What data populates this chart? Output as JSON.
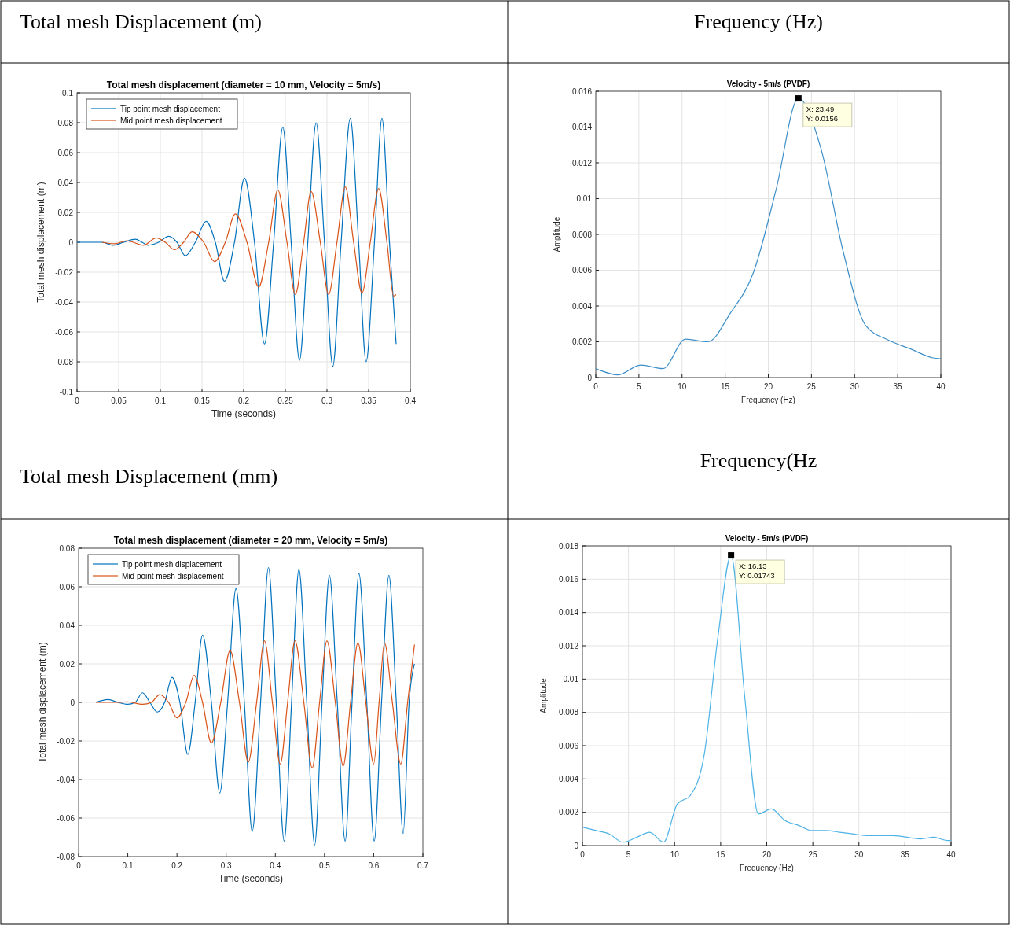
{
  "chart_data": [
    {
      "type": "line",
      "title": "Total mesh displacement (diameter = 10 mm, Velocity = 5m/s)",
      "xlabel": "Time (seconds)",
      "ylabel": "Total mesh displacement (m)",
      "xlim": [
        0,
        0.4
      ],
      "ylim": [
        -0.1,
        0.1
      ],
      "xticks": [
        0,
        0.05,
        0.1,
        0.15,
        0.2,
        0.25,
        0.3,
        0.35,
        0.4
      ],
      "yticks": [
        -0.1,
        -0.08,
        -0.06,
        -0.04,
        -0.02,
        0,
        0.02,
        0.04,
        0.06,
        0.08,
        0.1
      ],
      "grid": true,
      "legend": "top left",
      "annotations": [
        "Total mesh Displacement (m)",
        "Total mesh Displacement (mm)"
      ],
      "series": [
        {
          "name": "Tip point mesh displacement",
          "color": "#0072bd",
          "x": [
            0,
            0.03,
            0.043,
            0.056,
            0.07,
            0.078,
            0.085,
            0.098,
            0.11,
            0.12,
            0.13,
            0.142,
            0.155,
            0.166,
            0.177,
            0.189,
            0.201,
            0.213,
            0.225,
            0.236,
            0.247,
            0.257,
            0.267,
            0.277,
            0.287,
            0.297,
            0.307,
            0.317,
            0.328,
            0.338,
            0.347,
            0.357,
            0.366,
            0.375,
            0.383
          ],
          "values": [
            0,
            0,
            -0.002,
            0,
            0.002,
            0,
            -0.002,
            0,
            0.004,
            0,
            -0.009,
            0,
            0.014,
            0,
            -0.026,
            0,
            0.043,
            0,
            -0.068,
            0,
            0.077,
            0,
            -0.079,
            0,
            0.08,
            0,
            -0.083,
            0,
            0.083,
            0,
            -0.08,
            0,
            0.083,
            0,
            -0.068
          ]
        },
        {
          "name": "Mid point mesh displacement",
          "color": "#d95319",
          "x": [
            0.03,
            0.045,
            0.06,
            0.08,
            0.095,
            0.106,
            0.117,
            0.128,
            0.138,
            0.152,
            0.165,
            0.178,
            0.19,
            0.204,
            0.218,
            0.23,
            0.241,
            0.252,
            0.262,
            0.272,
            0.281,
            0.292,
            0.302,
            0.312,
            0.322,
            0.332,
            0.342,
            0.352,
            0.362,
            0.372,
            0.38,
            0.383
          ],
          "values": [
            0,
            -0.001,
            0.001,
            -0.002,
            0.003,
            0,
            -0.005,
            0,
            0.007,
            0,
            -0.013,
            0,
            0.019,
            0,
            -0.03,
            0,
            0.035,
            0,
            -0.035,
            0,
            0.034,
            0,
            -0.035,
            0,
            0.037,
            0,
            -0.034,
            0,
            0.036,
            0,
            -0.036,
            -0.035
          ]
        }
      ]
    },
    {
      "type": "line",
      "title": "Velocity - 5m/s (PVDF)",
      "xlabel": "Frequency (Hz)",
      "ylabel": "Amplitude",
      "xlim": [
        0,
        40
      ],
      "ylim": [
        0,
        0.016
      ],
      "xticks": [
        0,
        5,
        10,
        15,
        20,
        25,
        30,
        35,
        40
      ],
      "yticks": [
        0,
        0.002,
        0.004,
        0.006,
        0.008,
        0.01,
        0.012,
        0.014,
        0.016
      ],
      "grid": true,
      "annotations": [
        "Frequency (Hz)",
        "Frequency(Hz",
        {
          "text": "X: 23.49\nY: 0.0156",
          "x": 23.49,
          "y": 0.0156
        }
      ],
      "series": [
        {
          "color": "#3d8fc9",
          "x": [
            0,
            2.6,
            5.2,
            7.8,
            10.4,
            13,
            15.6,
            18.3,
            20.9,
            23.49,
            26.1,
            28.7,
            31.3,
            33.9,
            36.5,
            39.1,
            40
          ],
          "values": [
            0.0005,
            0.00015,
            0.0007,
            0.0005,
            0.00215,
            0.002,
            0.0036,
            0.0059,
            0.0105,
            0.0156,
            0.0128,
            0.007,
            0.0029,
            0.0021,
            0.0016,
            0.0011,
            0.00105
          ]
        }
      ]
    },
    {
      "type": "line",
      "title": "Total mesh displacement (diameter = 20 mm, Velocity = 5m/s)",
      "xlabel": "Time (seconds)",
      "ylabel": "Total mesh displacement (m)",
      "xlim": [
        0,
        0.7
      ],
      "ylim": [
        -0.08,
        0.08
      ],
      "xticks": [
        0,
        0.1,
        0.2,
        0.3,
        0.4,
        0.5,
        0.6,
        0.7
      ],
      "yticks": [
        -0.08,
        -0.06,
        -0.04,
        -0.02,
        0,
        0.02,
        0.04,
        0.06,
        0.08
      ],
      "grid": "y",
      "legend": "top left",
      "series": [
        {
          "name": "Tip point mesh displacement",
          "color": "#0072bd",
          "x": [
            0.035,
            0.06,
            0.08,
            0.1,
            0.115,
            0.13,
            0.145,
            0.16,
            0.175,
            0.19,
            0.206,
            0.222,
            0.237,
            0.252,
            0.27,
            0.287,
            0.303,
            0.32,
            0.337,
            0.353,
            0.37,
            0.386,
            0.402,
            0.418,
            0.433,
            0.448,
            0.464,
            0.48,
            0.495,
            0.51,
            0.526,
            0.542,
            0.556,
            0.57,
            0.586,
            0.601,
            0.616,
            0.631,
            0.646,
            0.66,
            0.672,
            0.683
          ],
          "values": [
            0,
            0.0015,
            0,
            -0.001,
            0,
            0.005,
            0,
            -0.005,
            0,
            0.013,
            0,
            -0.027,
            0,
            0.035,
            0,
            -0.047,
            0,
            0.059,
            0,
            -0.067,
            0,
            0.07,
            0,
            -0.072,
            0,
            0.069,
            0,
            -0.074,
            0,
            0.066,
            0,
            -0.072,
            0,
            0.067,
            0,
            -0.072,
            0,
            0.066,
            0,
            -0.068,
            0,
            0.02
          ]
        },
        {
          "name": "Mid point mesh displacement",
          "color": "#d95319",
          "x": [
            0.035,
            0.08,
            0.1,
            0.13,
            0.148,
            0.165,
            0.183,
            0.2,
            0.218,
            0.235,
            0.252,
            0.27,
            0.289,
            0.308,
            0.327,
            0.345,
            0.362,
            0.378,
            0.394,
            0.41,
            0.425,
            0.44,
            0.458,
            0.475,
            0.49,
            0.505,
            0.522,
            0.538,
            0.553,
            0.568,
            0.584,
            0.6,
            0.611,
            0.622,
            0.638,
            0.655,
            0.669,
            0.683
          ],
          "values": [
            0,
            0,
            0.0003,
            -0.001,
            0,
            0.004,
            0,
            -0.008,
            0,
            0.014,
            0,
            -0.021,
            0,
            0.027,
            0,
            -0.031,
            0,
            0.032,
            0,
            -0.032,
            0,
            0.032,
            0,
            -0.034,
            0,
            0.032,
            0,
            -0.033,
            0,
            0.031,
            0,
            -0.032,
            0,
            0.031,
            0,
            -0.032,
            0,
            0.03
          ]
        }
      ]
    },
    {
      "type": "line",
      "title": "Velocity - 5m/s (PVDF)",
      "xlabel": "Frequency (Hz)",
      "ylabel": "Amplitude",
      "xlim": [
        0,
        40
      ],
      "ylim": [
        0,
        0.018
      ],
      "xticks": [
        0,
        5,
        10,
        15,
        20,
        25,
        30,
        35,
        40
      ],
      "yticks": [
        0,
        0.002,
        0.004,
        0.006,
        0.008,
        0.01,
        0.012,
        0.014,
        0.016,
        0.018
      ],
      "grid": true,
      "annotations": [
        {
          "text": "X: 16.13\nY: 0.01743",
          "x": 16.13,
          "y": 0.01743
        }
      ],
      "series": [
        {
          "color": "#4db3e6",
          "x": [
            0,
            1.5,
            2.9,
            4.4,
            5.9,
            7.3,
            8.8,
            10.3,
            11.7,
            13.2,
            14.7,
            16.13,
            17.6,
            19.1,
            20.5,
            22,
            23.5,
            24.9,
            26.4,
            27.9,
            29.3,
            30.8,
            33.7,
            36.7,
            38.1,
            39.6,
            40
          ],
          "values": [
            0.0011,
            0.0009,
            0.0007,
            0.0002,
            0.0005,
            0.0008,
            0.0002,
            0.0025,
            0.003,
            0.0054,
            0.0125,
            0.01743,
            0.009,
            0.0019,
            0.0022,
            0.0015,
            0.0012,
            0.0009,
            0.0009,
            0.0008,
            0.0007,
            0.0006,
            0.0006,
            0.0004,
            0.0005,
            0.0003,
            0.0003
          ]
        }
      ]
    }
  ]
}
